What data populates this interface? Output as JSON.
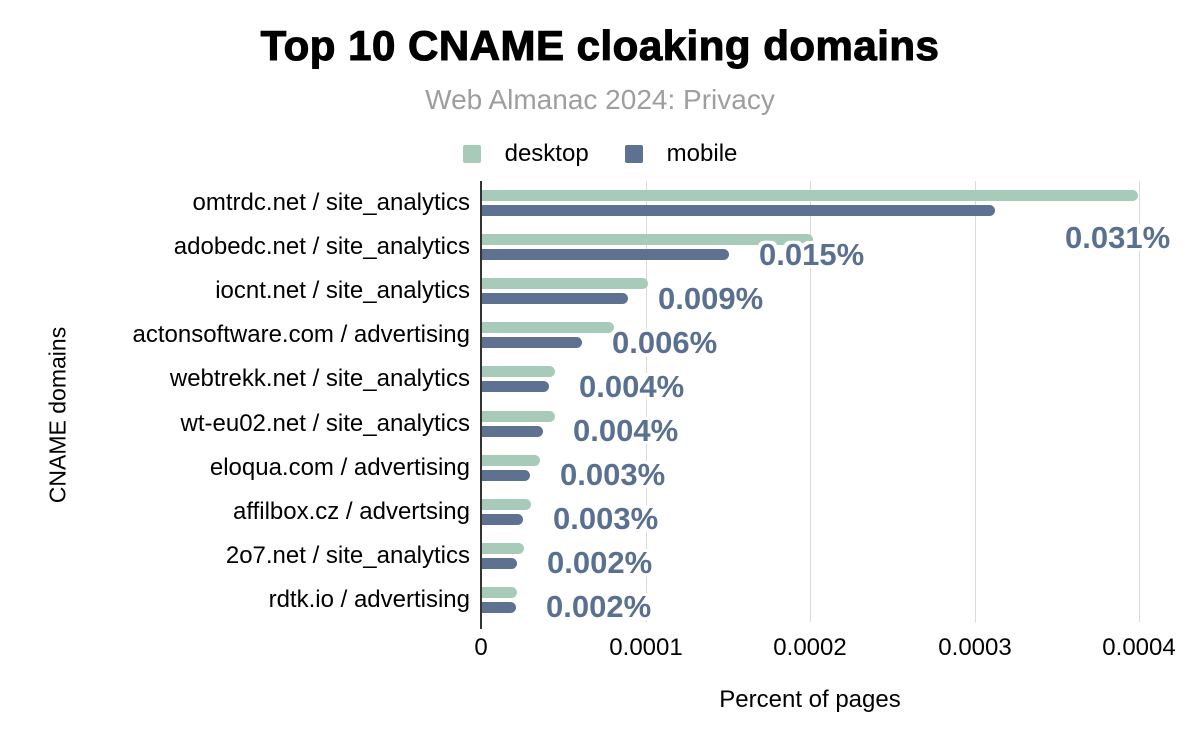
{
  "header": {
    "title": "Top 10 CNAME cloaking domains",
    "subtitle": "Web Almanac 2024: Privacy"
  },
  "colors": {
    "desktop": "#a7cbb8",
    "mobile": "#5e7190",
    "annotation_text": "#5a7090",
    "gridline": "#d9d9d9",
    "axis_line": "#333333",
    "subtitle_text": "#9e9e9e",
    "title_text": "#000000"
  },
  "chart_data": {
    "type": "bar",
    "orientation": "horizontal",
    "title": "Top 10 CNAME cloaking domains",
    "subtitle": "Web Almanac 2024: Privacy",
    "xlabel": "Percent of pages",
    "ylabel": "CNAME domains",
    "xlim": [
      0,
      0.0004
    ],
    "x_tick_labels": [
      "0",
      "0.0001",
      "0.0002",
      "0.0003",
      "0.0004"
    ],
    "x_tick_values": [
      0,
      0.0001,
      0.0002,
      0.0003,
      0.0004
    ],
    "grid": "vertical",
    "legend_position": "top",
    "categories": [
      "omtrdc.net / site_analytics",
      "adobedc.net / site_analytics",
      "iocnt.net / site_analytics",
      "actonsoftware.com / advertising",
      "webtrekk.net / site_analytics",
      "wt-eu02.net / site_analytics",
      "eloqua.com / advertising",
      "affilbox.cz / advertsing",
      "2o7.net / site_analytics",
      "rdtk.io / advertising"
    ],
    "series": [
      {
        "name": "desktop",
        "color": "#a7cbb8",
        "values": [
          0.000399,
          0.000201,
          0.000101,
          8e-05,
          4.45e-05,
          4.45e-05,
          3.55e-05,
          3e-05,
          2.55e-05,
          2.15e-05
        ]
      },
      {
        "name": "mobile",
        "color": "#5e7190",
        "values": [
          0.000312,
          0.00015,
          8.9e-05,
          6.1e-05,
          4.1e-05,
          3.7e-05,
          2.9e-05,
          2.5e-05,
          2.1e-05,
          2.05e-05
        ]
      }
    ],
    "annotations": {
      "series": "mobile",
      "labels": [
        "0.031%",
        "0.015%",
        "0.009%",
        "0.006%",
        "0.004%",
        "0.004%",
        "0.003%",
        "0.003%",
        "0.002%",
        "0.002%"
      ]
    }
  }
}
